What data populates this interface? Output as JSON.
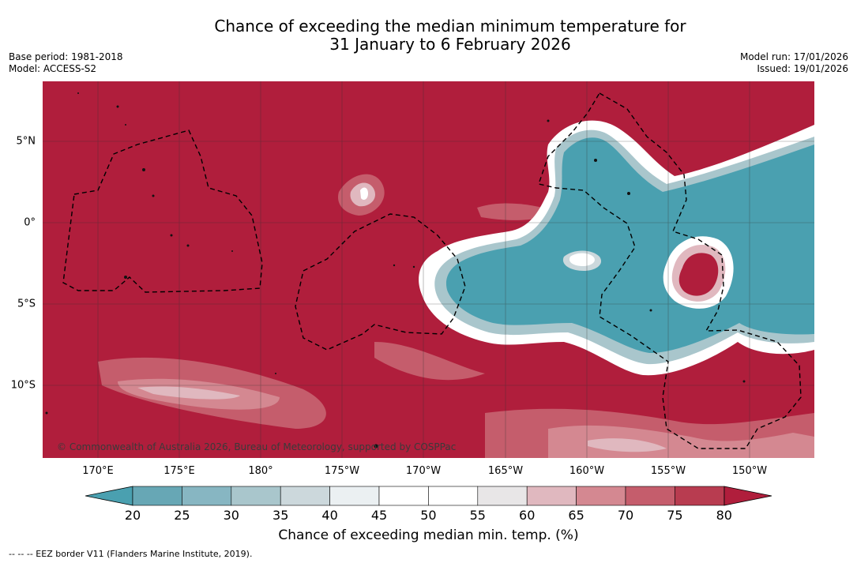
{
  "title": {
    "line1": "Chance of exceeding the median minimum temperature for",
    "line2": "31 January to 6 February 2026"
  },
  "meta": {
    "base_period": "Base period: 1981-2018",
    "model": "Model: ACCESS-S2",
    "model_run": "Model run: 17/01/2026",
    "issued": "Issued: 19/01/2026"
  },
  "map": {
    "copyright": "© Commonwealth of Australia 2026, Bureau of Meteorology, supported by COSPPac",
    "lon_labels": [
      "170°E",
      "175°E",
      "180°",
      "175°W",
      "170°W",
      "165°W",
      "160°W",
      "155°W",
      "150°W"
    ],
    "lat_labels": [
      "5°N",
      "0°",
      "5°S",
      "10°S"
    ]
  },
  "colorbar": {
    "ticks": [
      "20",
      "25",
      "30",
      "35",
      "40",
      "45",
      "50",
      "55",
      "60",
      "65",
      "70",
      "75",
      "80"
    ],
    "label": "Chance of exceeding median min. temp. (%)",
    "colors": {
      "under": "#4aa0b0",
      "bins": [
        "#67a7b5",
        "#87b6c2",
        "#a9c6cc",
        "#ccd8dc",
        "#ebf0f2",
        "#ffffff",
        "#ffffff",
        "#e8e6e7",
        "#e0b8bf",
        "#d48891",
        "#c55d6c",
        "#b83c50"
      ],
      "over": "#b01e3c"
    }
  },
  "footnote": "--  --  -- EEZ border V11 (Flanders Marine Institute, 2019)."
}
